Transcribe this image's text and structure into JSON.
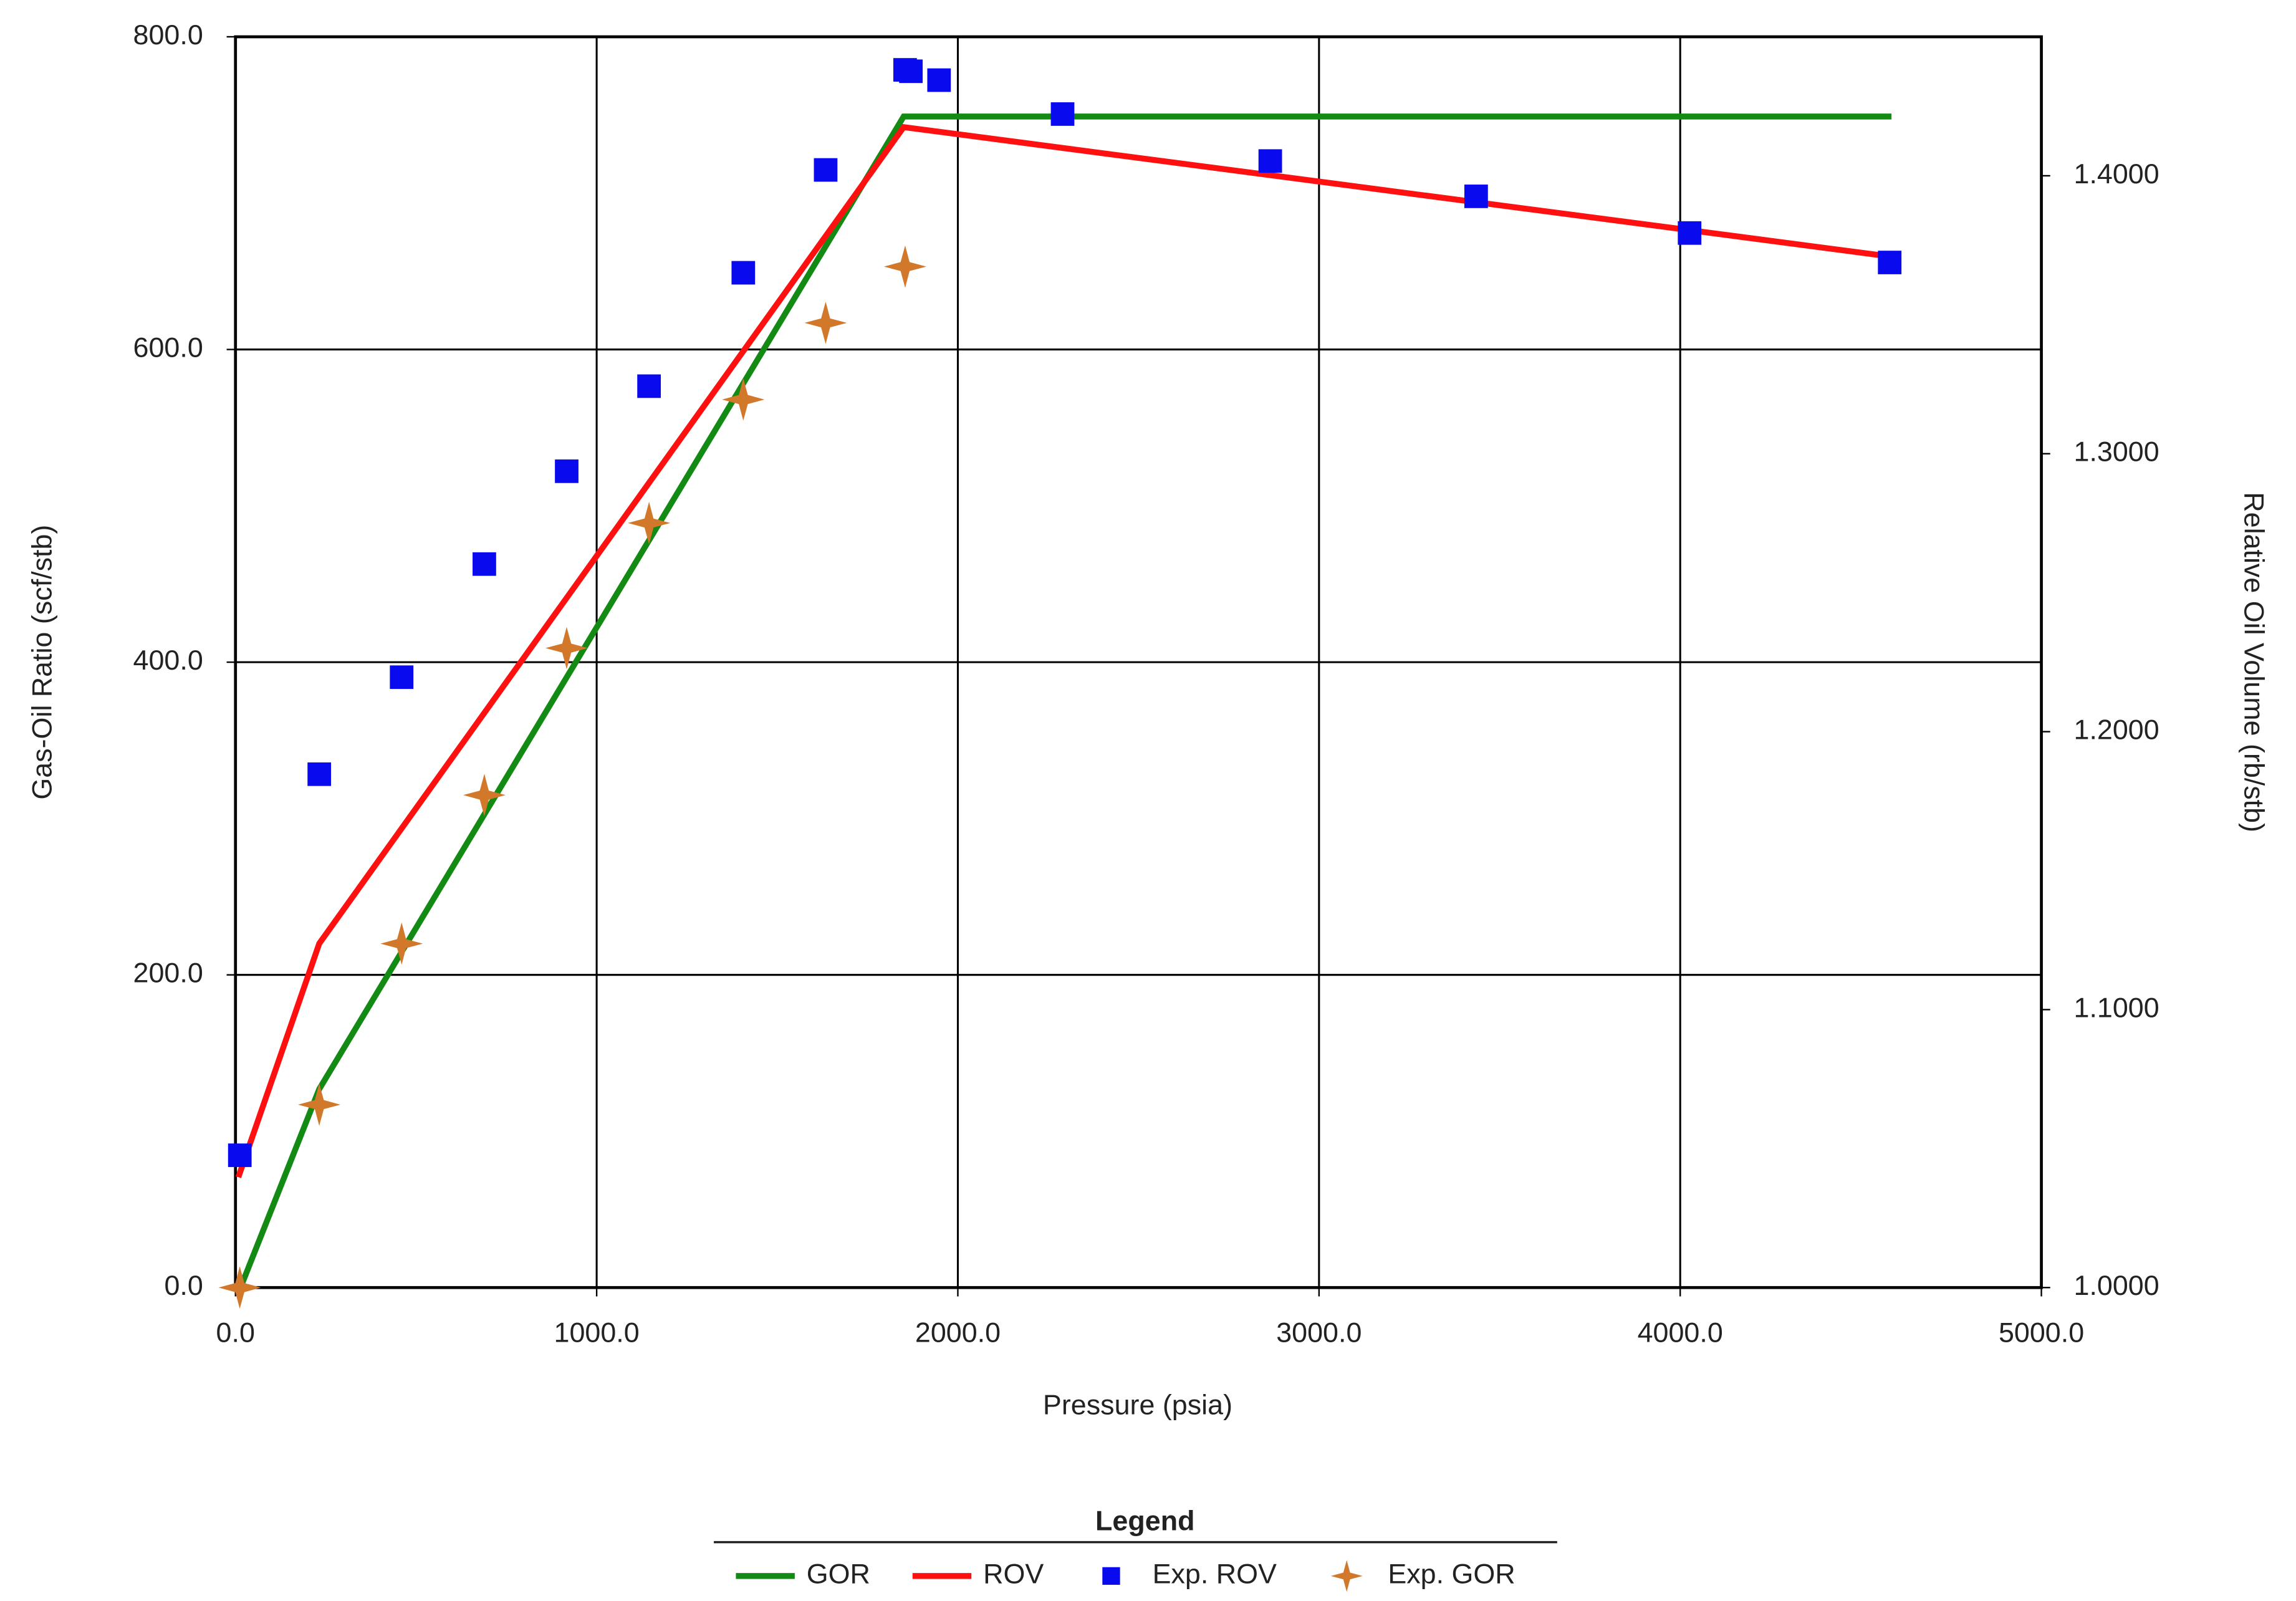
{
  "chart_data": {
    "type": "line",
    "x_label": "Pressure (psia)",
    "y_label": "Gas-Oil Ratio (scf/stb)",
    "y2_label": "Relative Oil Volume (rb/stb)",
    "xlim": [
      0,
      5000
    ],
    "xticks": [
      {
        "value": 0,
        "label": "0.0"
      },
      {
        "value": 1000,
        "label": "1000.0"
      },
      {
        "value": 2000,
        "label": "2000.0"
      },
      {
        "value": 3000,
        "label": "3000.0"
      },
      {
        "value": 4000,
        "label": "4000.0"
      },
      {
        "value": 5000,
        "label": "5000.0"
      }
    ],
    "ylim": [
      0,
      800
    ],
    "yticks": [
      {
        "value": 0,
        "label": "0.0"
      },
      {
        "value": 200,
        "label": "200.0"
      },
      {
        "value": 400,
        "label": "400.0"
      },
      {
        "value": 600,
        "label": "600.0"
      },
      {
        "value": 800,
        "label": "800.0"
      }
    ],
    "y2lim": [
      1.0,
      1.45
    ],
    "y2ticks": [
      {
        "value": 1.0,
        "label": "1.0000"
      },
      {
        "value": 1.1,
        "label": "1.1000"
      },
      {
        "value": 1.2,
        "label": "1.2000"
      },
      {
        "value": 1.3,
        "label": "1.3000"
      },
      {
        "value": 1.4,
        "label": "1.4000"
      }
    ],
    "grid": true,
    "legend": {
      "title": "Legend",
      "position": "bottom"
    },
    "series": [
      {
        "name": "GOR",
        "color": "#138a13",
        "type": "line",
        "axis": "y",
        "x": [
          14,
          232,
          1850,
          4585
        ],
        "values": [
          0,
          127,
          749,
          749
        ]
      },
      {
        "name": "ROV",
        "color": "#ff1010",
        "type": "line",
        "axis": "y2",
        "x": [
          8,
          232,
          1850,
          4585
        ],
        "values": [
          1.0397,
          1.1238,
          1.4175,
          1.3709
        ]
      },
      {
        "name": "Exp. ROV",
        "color": "#0a0aee",
        "type": "scatter",
        "marker": "square",
        "axis": "y2",
        "x": [
          12,
          232,
          460,
          689,
          917,
          1145,
          1406,
          1634,
          1854,
          1870,
          1948,
          2290,
          2865,
          3435,
          4026,
          4580
        ],
        "values": [
          1.0476,
          1.1847,
          1.2196,
          1.2603,
          1.2937,
          1.3243,
          1.3651,
          1.4021,
          1.4381,
          1.4376,
          1.4344,
          1.4222,
          1.4053,
          1.3926,
          1.3794,
          1.3688
        ]
      },
      {
        "name": "Exp. GOR",
        "color": "#d2782a",
        "type": "scatter",
        "marker": "star",
        "axis": "y",
        "x": [
          12,
          232,
          460,
          689,
          917,
          1145,
          1406,
          1634,
          1854
        ],
        "values": [
          0,
          117,
          220,
          315,
          409,
          489,
          568,
          617,
          653
        ]
      }
    ]
  }
}
